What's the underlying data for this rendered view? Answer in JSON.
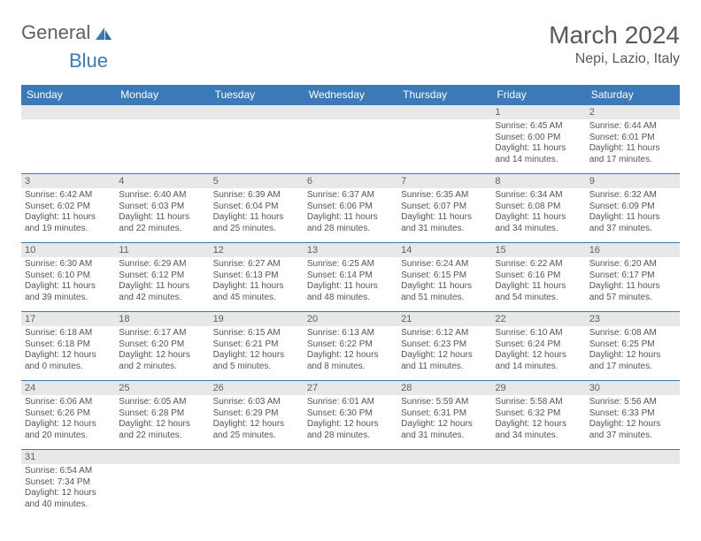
{
  "logo": {
    "part1": "General",
    "part2": "Blue"
  },
  "title": "March 2024",
  "location": "Nepi, Lazio, Italy",
  "colors": {
    "header_bg": "#3a7ab8",
    "header_text": "#ffffff",
    "daynum_bg": "#e8e8e8",
    "cell_border": "#3a7ab8",
    "body_text": "#555555",
    "brand_blue": "#3a7ab8",
    "brand_gray": "#606060"
  },
  "typography": {
    "title_fontsize": 28,
    "location_fontsize": 16,
    "weekday_fontsize": 12,
    "daynum_fontsize": 11,
    "cell_fontsize": 10
  },
  "weekdays": [
    "Sunday",
    "Monday",
    "Tuesday",
    "Wednesday",
    "Thursday",
    "Friday",
    "Saturday"
  ],
  "weeks": [
    [
      null,
      null,
      null,
      null,
      null,
      {
        "n": "1",
        "sr": "Sunrise: 6:45 AM",
        "ss": "Sunset: 6:00 PM",
        "d1": "Daylight: 11 hours",
        "d2": "and 14 minutes."
      },
      {
        "n": "2",
        "sr": "Sunrise: 6:44 AM",
        "ss": "Sunset: 6:01 PM",
        "d1": "Daylight: 11 hours",
        "d2": "and 17 minutes."
      }
    ],
    [
      {
        "n": "3",
        "sr": "Sunrise: 6:42 AM",
        "ss": "Sunset: 6:02 PM",
        "d1": "Daylight: 11 hours",
        "d2": "and 19 minutes."
      },
      {
        "n": "4",
        "sr": "Sunrise: 6:40 AM",
        "ss": "Sunset: 6:03 PM",
        "d1": "Daylight: 11 hours",
        "d2": "and 22 minutes."
      },
      {
        "n": "5",
        "sr": "Sunrise: 6:39 AM",
        "ss": "Sunset: 6:04 PM",
        "d1": "Daylight: 11 hours",
        "d2": "and 25 minutes."
      },
      {
        "n": "6",
        "sr": "Sunrise: 6:37 AM",
        "ss": "Sunset: 6:06 PM",
        "d1": "Daylight: 11 hours",
        "d2": "and 28 minutes."
      },
      {
        "n": "7",
        "sr": "Sunrise: 6:35 AM",
        "ss": "Sunset: 6:07 PM",
        "d1": "Daylight: 11 hours",
        "d2": "and 31 minutes."
      },
      {
        "n": "8",
        "sr": "Sunrise: 6:34 AM",
        "ss": "Sunset: 6:08 PM",
        "d1": "Daylight: 11 hours",
        "d2": "and 34 minutes."
      },
      {
        "n": "9",
        "sr": "Sunrise: 6:32 AM",
        "ss": "Sunset: 6:09 PM",
        "d1": "Daylight: 11 hours",
        "d2": "and 37 minutes."
      }
    ],
    [
      {
        "n": "10",
        "sr": "Sunrise: 6:30 AM",
        "ss": "Sunset: 6:10 PM",
        "d1": "Daylight: 11 hours",
        "d2": "and 39 minutes."
      },
      {
        "n": "11",
        "sr": "Sunrise: 6:29 AM",
        "ss": "Sunset: 6:12 PM",
        "d1": "Daylight: 11 hours",
        "d2": "and 42 minutes."
      },
      {
        "n": "12",
        "sr": "Sunrise: 6:27 AM",
        "ss": "Sunset: 6:13 PM",
        "d1": "Daylight: 11 hours",
        "d2": "and 45 minutes."
      },
      {
        "n": "13",
        "sr": "Sunrise: 6:25 AM",
        "ss": "Sunset: 6:14 PM",
        "d1": "Daylight: 11 hours",
        "d2": "and 48 minutes."
      },
      {
        "n": "14",
        "sr": "Sunrise: 6:24 AM",
        "ss": "Sunset: 6:15 PM",
        "d1": "Daylight: 11 hours",
        "d2": "and 51 minutes."
      },
      {
        "n": "15",
        "sr": "Sunrise: 6:22 AM",
        "ss": "Sunset: 6:16 PM",
        "d1": "Daylight: 11 hours",
        "d2": "and 54 minutes."
      },
      {
        "n": "16",
        "sr": "Sunrise: 6:20 AM",
        "ss": "Sunset: 6:17 PM",
        "d1": "Daylight: 11 hours",
        "d2": "and 57 minutes."
      }
    ],
    [
      {
        "n": "17",
        "sr": "Sunrise: 6:18 AM",
        "ss": "Sunset: 6:18 PM",
        "d1": "Daylight: 12 hours",
        "d2": "and 0 minutes."
      },
      {
        "n": "18",
        "sr": "Sunrise: 6:17 AM",
        "ss": "Sunset: 6:20 PM",
        "d1": "Daylight: 12 hours",
        "d2": "and 2 minutes."
      },
      {
        "n": "19",
        "sr": "Sunrise: 6:15 AM",
        "ss": "Sunset: 6:21 PM",
        "d1": "Daylight: 12 hours",
        "d2": "and 5 minutes."
      },
      {
        "n": "20",
        "sr": "Sunrise: 6:13 AM",
        "ss": "Sunset: 6:22 PM",
        "d1": "Daylight: 12 hours",
        "d2": "and 8 minutes."
      },
      {
        "n": "21",
        "sr": "Sunrise: 6:12 AM",
        "ss": "Sunset: 6:23 PM",
        "d1": "Daylight: 12 hours",
        "d2": "and 11 minutes."
      },
      {
        "n": "22",
        "sr": "Sunrise: 6:10 AM",
        "ss": "Sunset: 6:24 PM",
        "d1": "Daylight: 12 hours",
        "d2": "and 14 minutes."
      },
      {
        "n": "23",
        "sr": "Sunrise: 6:08 AM",
        "ss": "Sunset: 6:25 PM",
        "d1": "Daylight: 12 hours",
        "d2": "and 17 minutes."
      }
    ],
    [
      {
        "n": "24",
        "sr": "Sunrise: 6:06 AM",
        "ss": "Sunset: 6:26 PM",
        "d1": "Daylight: 12 hours",
        "d2": "and 20 minutes."
      },
      {
        "n": "25",
        "sr": "Sunrise: 6:05 AM",
        "ss": "Sunset: 6:28 PM",
        "d1": "Daylight: 12 hours",
        "d2": "and 22 minutes."
      },
      {
        "n": "26",
        "sr": "Sunrise: 6:03 AM",
        "ss": "Sunset: 6:29 PM",
        "d1": "Daylight: 12 hours",
        "d2": "and 25 minutes."
      },
      {
        "n": "27",
        "sr": "Sunrise: 6:01 AM",
        "ss": "Sunset: 6:30 PM",
        "d1": "Daylight: 12 hours",
        "d2": "and 28 minutes."
      },
      {
        "n": "28",
        "sr": "Sunrise: 5:59 AM",
        "ss": "Sunset: 6:31 PM",
        "d1": "Daylight: 12 hours",
        "d2": "and 31 minutes."
      },
      {
        "n": "29",
        "sr": "Sunrise: 5:58 AM",
        "ss": "Sunset: 6:32 PM",
        "d1": "Daylight: 12 hours",
        "d2": "and 34 minutes."
      },
      {
        "n": "30",
        "sr": "Sunrise: 5:56 AM",
        "ss": "Sunset: 6:33 PM",
        "d1": "Daylight: 12 hours",
        "d2": "and 37 minutes."
      }
    ],
    [
      {
        "n": "31",
        "sr": "Sunrise: 6:54 AM",
        "ss": "Sunset: 7:34 PM",
        "d1": "Daylight: 12 hours",
        "d2": "and 40 minutes."
      },
      null,
      null,
      null,
      null,
      null,
      null
    ]
  ]
}
